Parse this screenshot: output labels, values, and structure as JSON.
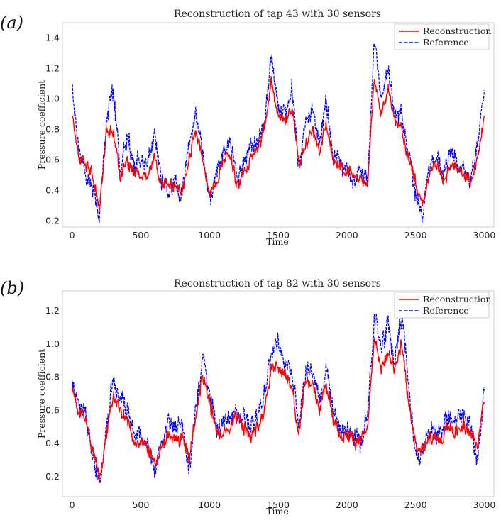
{
  "figure": {
    "panels": [
      {
        "panel_label": "(a)",
        "title": "Reconstruction of tap 43 with 30 sensors",
        "xlabel": "Time",
        "ylabel": "Pressure coefficient",
        "x_ticks": [
          "0",
          "500",
          "1000",
          "1500",
          "2000",
          "2500",
          "3000"
        ],
        "y_ticks": [
          "0.2",
          "0.4",
          "0.6",
          "0.8",
          "1.0",
          "1.2",
          "1.4"
        ],
        "legend": [
          "Reconstruction",
          "Reference"
        ]
      },
      {
        "panel_label": "(b)",
        "title": "Reconstruction of tap 82 with 30 sensors",
        "xlabel": "Time",
        "ylabel": "Pressure coefficient",
        "x_ticks": [
          "0",
          "500",
          "1000",
          "1500",
          "2000",
          "2500",
          "3000"
        ],
        "y_ticks": [
          "0.2",
          "0.4",
          "0.6",
          "0.8",
          "1.0",
          "1.2"
        ],
        "legend": [
          "Reconstruction",
          "Reference"
        ]
      }
    ]
  },
  "colors": {
    "reconstruction": "#ff0000",
    "reference": "#0000ff",
    "frame": "#cccccc"
  },
  "chart_data": [
    {
      "type": "line",
      "title": "Reconstruction of tap 43 with 30 sensors",
      "xlabel": "Time",
      "ylabel": "Pressure coefficient",
      "xlim": [
        -70,
        3070
      ],
      "ylim": [
        0.16,
        1.5
      ],
      "legend_position": "top-right",
      "x_knots": [
        0,
        50,
        100,
        150,
        200,
        250,
        300,
        350,
        400,
        450,
        500,
        550,
        600,
        650,
        700,
        750,
        800,
        850,
        900,
        950,
        1000,
        1050,
        1100,
        1150,
        1200,
        1250,
        1300,
        1350,
        1400,
        1450,
        1500,
        1550,
        1600,
        1650,
        1700,
        1750,
        1800,
        1850,
        1900,
        1950,
        2000,
        2050,
        2100,
        2150,
        2200,
        2250,
        2300,
        2350,
        2400,
        2450,
        2500,
        2550,
        2600,
        2650,
        2700,
        2750,
        2800,
        2850,
        2900,
        2950,
        3000
      ],
      "series": [
        {
          "name": "Reconstruction",
          "style": "solid",
          "values": [
            0.92,
            0.62,
            0.58,
            0.5,
            0.28,
            0.78,
            0.8,
            0.5,
            0.6,
            0.5,
            0.52,
            0.48,
            0.62,
            0.45,
            0.44,
            0.42,
            0.4,
            0.6,
            0.8,
            0.62,
            0.38,
            0.45,
            0.6,
            0.62,
            0.45,
            0.5,
            0.62,
            0.65,
            0.8,
            1.12,
            0.9,
            0.85,
            0.95,
            0.58,
            0.7,
            0.8,
            0.65,
            0.85,
            0.6,
            0.55,
            0.52,
            0.5,
            0.5,
            0.45,
            1.15,
            0.9,
            1.05,
            0.85,
            0.8,
            0.6,
            0.45,
            0.3,
            0.5,
            0.6,
            0.45,
            0.55,
            0.55,
            0.5,
            0.48,
            0.62,
            0.88
          ]
        },
        {
          "name": "Reference",
          "style": "dashed",
          "values": [
            1.05,
            0.65,
            0.5,
            0.4,
            0.25,
            0.85,
            1.05,
            0.55,
            0.75,
            0.55,
            0.58,
            0.6,
            0.75,
            0.48,
            0.4,
            0.45,
            0.38,
            0.7,
            0.9,
            0.68,
            0.32,
            0.5,
            0.65,
            0.7,
            0.5,
            0.58,
            0.7,
            0.7,
            0.85,
            1.3,
            0.95,
            0.9,
            1.05,
            0.6,
            0.8,
            0.95,
            0.7,
            1.0,
            0.65,
            0.6,
            0.55,
            0.45,
            0.55,
            0.45,
            1.38,
            1.0,
            1.2,
            0.9,
            0.9,
            0.65,
            0.35,
            0.22,
            0.55,
            0.65,
            0.5,
            0.65,
            0.6,
            0.55,
            0.45,
            0.7,
            1.05
          ]
        }
      ]
    },
    {
      "type": "line",
      "title": "Reconstruction of tap 82 with 30 sensors",
      "xlabel": "Time",
      "ylabel": "Pressure coefficient",
      "xlim": [
        -70,
        3070
      ],
      "ylim": [
        0.08,
        1.32
      ],
      "legend_position": "top-right",
      "x_knots": [
        0,
        50,
        100,
        150,
        200,
        250,
        300,
        350,
        400,
        450,
        500,
        550,
        600,
        650,
        700,
        750,
        800,
        850,
        900,
        950,
        1000,
        1050,
        1100,
        1150,
        1200,
        1250,
        1300,
        1350,
        1400,
        1450,
        1500,
        1550,
        1600,
        1650,
        1700,
        1750,
        1800,
        1850,
        1900,
        1950,
        2000,
        2050,
        2100,
        2150,
        2200,
        2250,
        2300,
        2350,
        2400,
        2450,
        2500,
        2550,
        2600,
        2650,
        2700,
        2750,
        2800,
        2850,
        2900,
        2950,
        3000
      ],
      "series": [
        {
          "name": "Reconstruction",
          "style": "solid",
          "values": [
            0.72,
            0.6,
            0.55,
            0.35,
            0.2,
            0.45,
            0.7,
            0.6,
            0.55,
            0.4,
            0.42,
            0.38,
            0.3,
            0.35,
            0.45,
            0.4,
            0.45,
            0.3,
            0.55,
            0.82,
            0.65,
            0.48,
            0.45,
            0.5,
            0.55,
            0.5,
            0.45,
            0.5,
            0.6,
            0.85,
            0.88,
            0.8,
            0.75,
            0.45,
            0.8,
            0.75,
            0.6,
            0.75,
            0.55,
            0.45,
            0.45,
            0.42,
            0.4,
            0.5,
            1.05,
            0.85,
            0.95,
            0.85,
            1.0,
            0.65,
            0.4,
            0.38,
            0.45,
            0.42,
            0.45,
            0.5,
            0.48,
            0.5,
            0.45,
            0.38,
            0.68
          ]
        },
        {
          "name": "Reference",
          "style": "dashed",
          "values": [
            0.75,
            0.62,
            0.6,
            0.3,
            0.18,
            0.5,
            0.8,
            0.65,
            0.62,
            0.45,
            0.45,
            0.42,
            0.25,
            0.38,
            0.5,
            0.45,
            0.5,
            0.25,
            0.6,
            0.95,
            0.7,
            0.52,
            0.5,
            0.55,
            0.6,
            0.55,
            0.5,
            0.55,
            0.7,
            0.95,
            1.0,
            0.85,
            0.8,
            0.5,
            0.85,
            0.85,
            0.65,
            0.85,
            0.6,
            0.48,
            0.5,
            0.45,
            0.42,
            0.55,
            1.2,
            0.95,
            1.1,
            0.9,
            1.2,
            0.75,
            0.3,
            0.35,
            0.5,
            0.48,
            0.5,
            0.55,
            0.52,
            0.6,
            0.5,
            0.3,
            0.72
          ]
        }
      ]
    }
  ]
}
